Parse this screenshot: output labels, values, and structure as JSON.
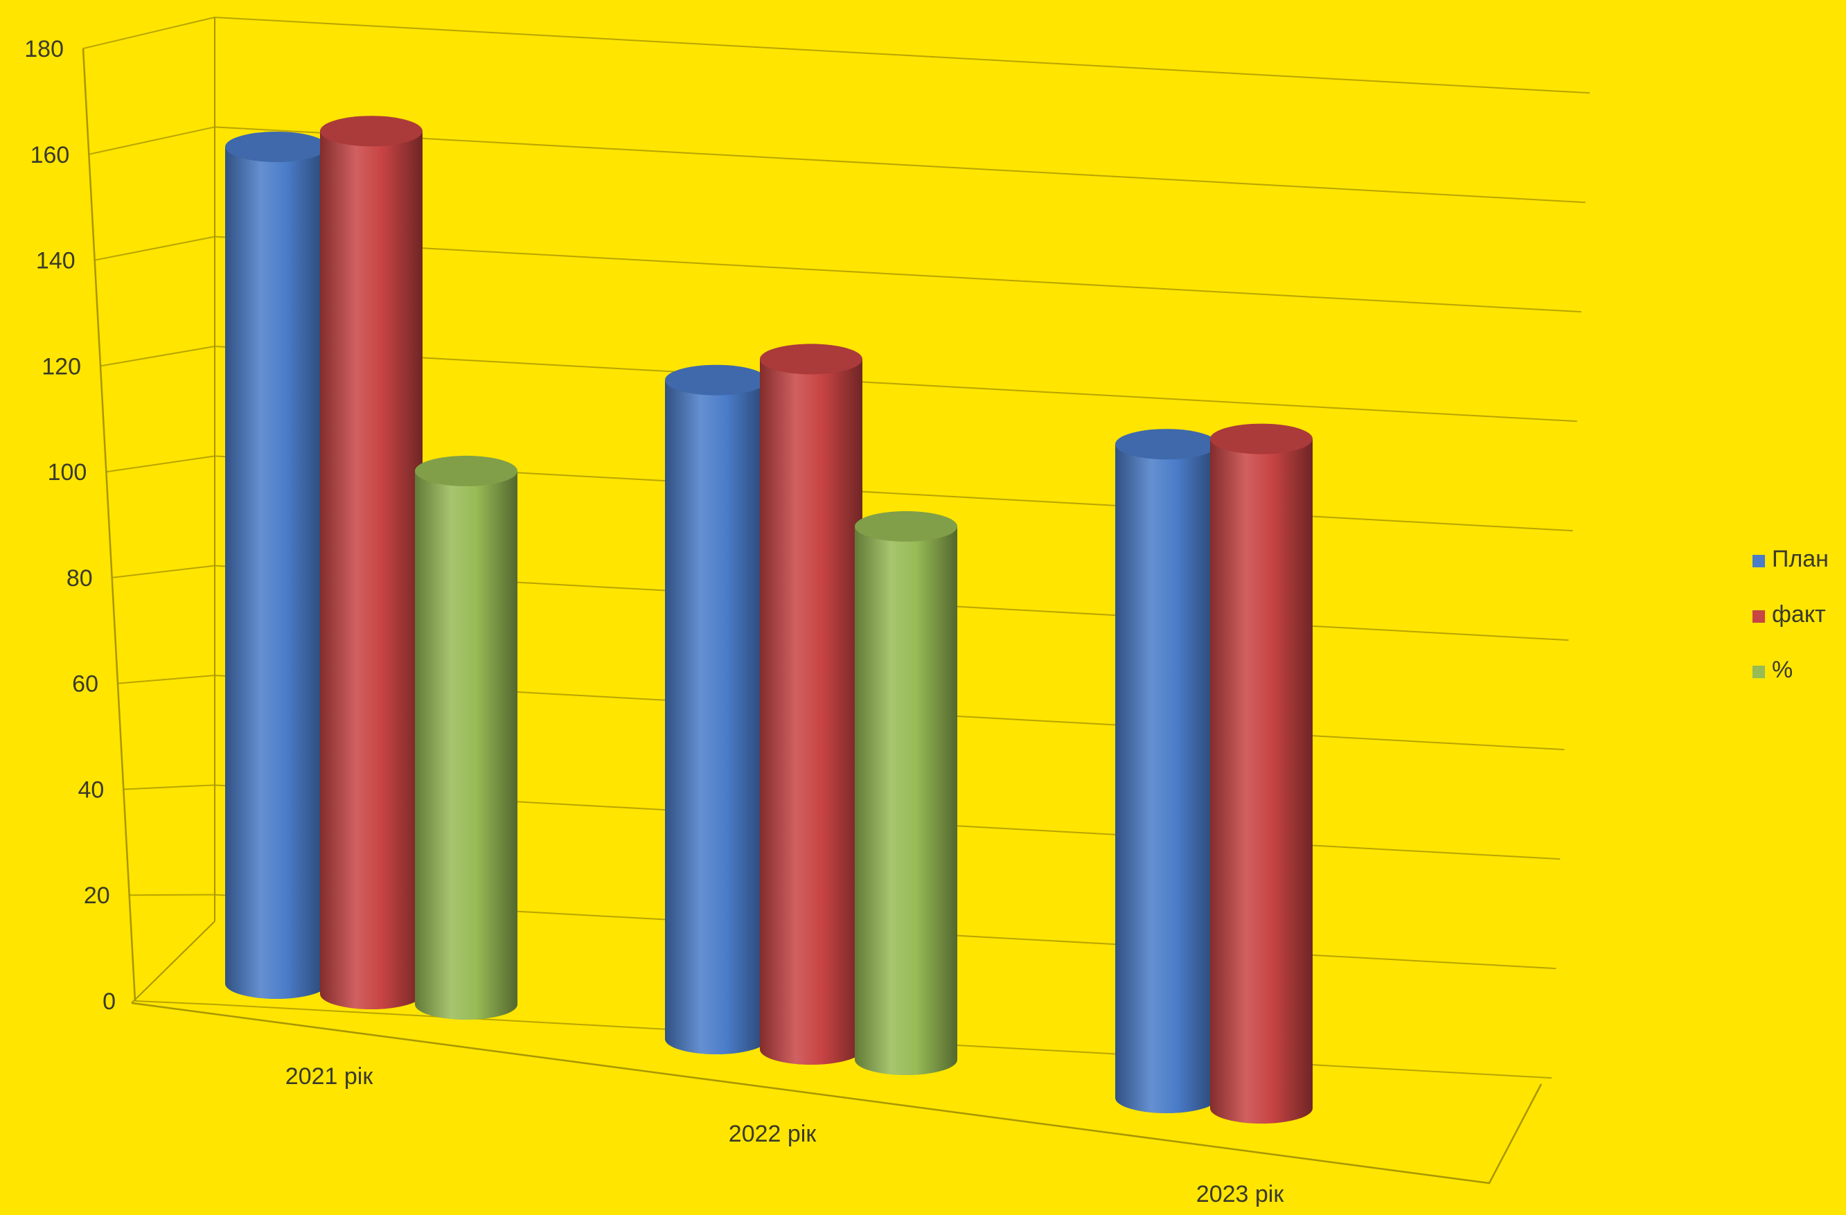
{
  "chart_data": {
    "type": "bar",
    "style": "3d-cylinder",
    "title": "",
    "xlabel": "",
    "ylabel": "",
    "categories": [
      "2021 рік",
      "2022 рік",
      "2023 рік"
    ],
    "ylim": [
      0,
      180
    ],
    "yticks": [
      0,
      20,
      40,
      60,
      80,
      100,
      120,
      140,
      160,
      180
    ],
    "grid": true,
    "legend_position": "right",
    "series": [
      {
        "name": "План",
        "color": "#4a7cc9",
        "values": [
          160,
          126,
          125
        ]
      },
      {
        "name": "факт",
        "color": "#c94444",
        "values": [
          165,
          132,
          128
        ]
      },
      {
        "name": "%",
        "color": "#97bb55",
        "values": [
          102,
          102,
          null
        ]
      }
    ]
  }
}
